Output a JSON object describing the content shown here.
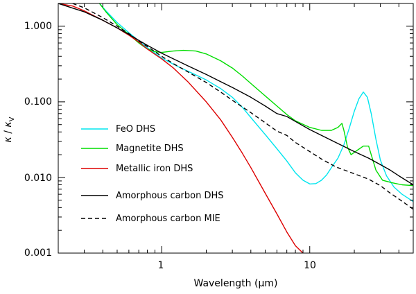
{
  "chart_data": {
    "type": "line",
    "title": "",
    "xlabel": "Wavelength (μm)",
    "xlabel_pre": "Wavelength (",
    "xlabel_mu": "μ",
    "xlabel_post": "m)",
    "ylabel": "κ / κ_V",
    "ylabel_num": "κ",
    "ylabel_sep": " / ",
    "ylabel_den": "κ",
    "ylabel_sub": "V",
    "xscale": "log",
    "yscale": "log",
    "xlim": [
      0.2,
      50
    ],
    "ylim": [
      0.001,
      2
    ],
    "xticks": [
      {
        "value": 1,
        "label": "1"
      },
      {
        "value": 10,
        "label": "10"
      }
    ],
    "yticks": [
      {
        "value": 0.001,
        "label": "0.001"
      },
      {
        "value": 0.01,
        "label": "0.010"
      },
      {
        "value": 0.1,
        "label": "0.100"
      },
      {
        "value": 1,
        "label": "1.000"
      }
    ],
    "legend_position": "lower-left",
    "series": [
      {
        "name": "FeO DHS",
        "color": "#00e5ee",
        "dash": "",
        "points": [
          [
            0.38,
            2.0
          ],
          [
            0.42,
            1.6
          ],
          [
            0.5,
            1.12
          ],
          [
            0.6,
            0.82
          ],
          [
            0.8,
            0.52
          ],
          [
            1.0,
            0.38
          ],
          [
            1.3,
            0.29
          ],
          [
            1.6,
            0.24
          ],
          [
            2.0,
            0.195
          ],
          [
            2.5,
            0.15
          ],
          [
            3.0,
            0.115
          ],
          [
            3.5,
            0.085
          ],
          [
            4.0,
            0.062
          ],
          [
            5.0,
            0.037
          ],
          [
            6.0,
            0.024
          ],
          [
            7.0,
            0.0165
          ],
          [
            8.0,
            0.0115
          ],
          [
            9.0,
            0.0092
          ],
          [
            10.0,
            0.0082
          ],
          [
            11.0,
            0.0083
          ],
          [
            12.0,
            0.0092
          ],
          [
            13.0,
            0.0108
          ],
          [
            14.0,
            0.0135
          ],
          [
            15.5,
            0.018
          ],
          [
            17.0,
            0.027
          ],
          [
            18.5,
            0.045
          ],
          [
            20.0,
            0.075
          ],
          [
            21.5,
            0.11
          ],
          [
            23.0,
            0.135
          ],
          [
            24.5,
            0.115
          ],
          [
            26.0,
            0.07
          ],
          [
            28.0,
            0.032
          ],
          [
            30.0,
            0.017
          ],
          [
            33.0,
            0.0105
          ],
          [
            37.0,
            0.0075
          ],
          [
            42.0,
            0.006
          ],
          [
            50.0,
            0.0048
          ]
        ]
      },
      {
        "name": "Magnetite DHS",
        "color": "#00dd00",
        "dash": "",
        "points": [
          [
            0.38,
            2.0
          ],
          [
            0.42,
            1.55
          ],
          [
            0.5,
            1.05
          ],
          [
            0.6,
            0.78
          ],
          [
            0.7,
            0.6
          ],
          [
            0.8,
            0.5
          ],
          [
            0.9,
            0.46
          ],
          [
            1.0,
            0.45
          ],
          [
            1.2,
            0.47
          ],
          [
            1.4,
            0.48
          ],
          [
            1.7,
            0.47
          ],
          [
            2.0,
            0.43
          ],
          [
            2.5,
            0.35
          ],
          [
            3.0,
            0.28
          ],
          [
            3.5,
            0.22
          ],
          [
            4.0,
            0.175
          ],
          [
            5.0,
            0.12
          ],
          [
            6.0,
            0.088
          ],
          [
            7.0,
            0.068
          ],
          [
            8.0,
            0.056
          ],
          [
            10.0,
            0.046
          ],
          [
            12.0,
            0.042
          ],
          [
            14.0,
            0.042
          ],
          [
            15.5,
            0.046
          ],
          [
            16.5,
            0.052
          ],
          [
            17.0,
            0.042
          ],
          [
            18.0,
            0.025
          ],
          [
            19.0,
            0.02
          ],
          [
            21.0,
            0.023
          ],
          [
            23.0,
            0.026
          ],
          [
            25.0,
            0.026
          ],
          [
            26.0,
            0.02
          ],
          [
            28.0,
            0.0125
          ],
          [
            31.0,
            0.0092
          ],
          [
            36.0,
            0.0085
          ],
          [
            42.0,
            0.008
          ],
          [
            50.0,
            0.0078
          ]
        ]
      },
      {
        "name": "Metallic iron DHS",
        "color": "#dd0000",
        "dash": "",
        "points": [
          [
            0.2,
            2.0
          ],
          [
            0.25,
            1.85
          ],
          [
            0.3,
            1.6
          ],
          [
            0.4,
            1.2
          ],
          [
            0.5,
            0.95
          ],
          [
            0.6,
            0.76
          ],
          [
            0.7,
            0.62
          ],
          [
            0.8,
            0.5
          ],
          [
            1.0,
            0.37
          ],
          [
            1.2,
            0.28
          ],
          [
            1.5,
            0.185
          ],
          [
            2.0,
            0.1
          ],
          [
            2.5,
            0.058
          ],
          [
            3.0,
            0.034
          ],
          [
            3.5,
            0.021
          ],
          [
            4.0,
            0.0135
          ],
          [
            5.0,
            0.0062
          ],
          [
            6.0,
            0.0033
          ],
          [
            7.0,
            0.0019
          ],
          [
            8.0,
            0.00125
          ],
          [
            9.0,
            0.001
          ]
        ]
      },
      {
        "name": "Amorphous carbon DHS",
        "color": "#000000",
        "dash": "",
        "points": [
          [
            0.2,
            2.0
          ],
          [
            0.3,
            1.55
          ],
          [
            0.4,
            1.2
          ],
          [
            0.5,
            0.95
          ],
          [
            0.6,
            0.78
          ],
          [
            0.7,
            0.65
          ],
          [
            0.8,
            0.56
          ],
          [
            1.0,
            0.44
          ],
          [
            1.2,
            0.37
          ],
          [
            1.5,
            0.3
          ],
          [
            2.0,
            0.23
          ],
          [
            2.5,
            0.185
          ],
          [
            3.0,
            0.155
          ],
          [
            4.0,
            0.115
          ],
          [
            5.0,
            0.088
          ],
          [
            6.0,
            0.07
          ],
          [
            7.0,
            0.064
          ],
          [
            8.0,
            0.055
          ],
          [
            10.0,
            0.043
          ],
          [
            12.0,
            0.036
          ],
          [
            15.0,
            0.029
          ],
          [
            20.0,
            0.022
          ],
          [
            25.0,
            0.018
          ],
          [
            30.0,
            0.0148
          ],
          [
            35.0,
            0.0125
          ],
          [
            40.0,
            0.0105
          ],
          [
            50.0,
            0.008
          ]
        ]
      },
      {
        "name": "Amorphous carbon MIE",
        "color": "#000000",
        "dash": "6,4",
        "points": [
          [
            0.25,
            2.0
          ],
          [
            0.3,
            1.75
          ],
          [
            0.4,
            1.3
          ],
          [
            0.5,
            1.0
          ],
          [
            0.6,
            0.8
          ],
          [
            0.7,
            0.64
          ],
          [
            0.8,
            0.54
          ],
          [
            1.0,
            0.4
          ],
          [
            1.2,
            0.32
          ],
          [
            1.5,
            0.25
          ],
          [
            2.0,
            0.18
          ],
          [
            2.5,
            0.135
          ],
          [
            3.0,
            0.105
          ],
          [
            4.0,
            0.072
          ],
          [
            5.0,
            0.053
          ],
          [
            6.0,
            0.041
          ],
          [
            7.0,
            0.036
          ],
          [
            8.0,
            0.029
          ],
          [
            10.0,
            0.022
          ],
          [
            12.0,
            0.0175
          ],
          [
            15.0,
            0.0138
          ],
          [
            20.0,
            0.0112
          ],
          [
            25.0,
            0.0095
          ],
          [
            30.0,
            0.0078
          ],
          [
            35.0,
            0.0062
          ],
          [
            40.0,
            0.0052
          ],
          [
            50.0,
            0.0038
          ]
        ]
      }
    ]
  }
}
